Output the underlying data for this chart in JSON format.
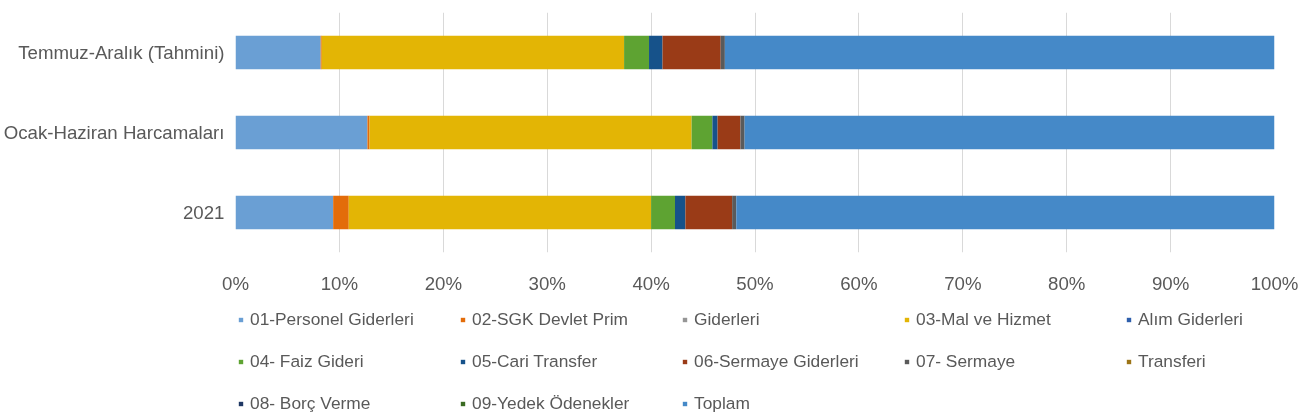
{
  "chart_data": {
    "type": "bar",
    "orientation": "horizontal",
    "stacked": true,
    "categories": [
      "Temmuz-Aralık (Tahmini)",
      "Ocak-Haziran Harcamaları",
      "2021"
    ],
    "series": [
      {
        "name": "01-Personel Giderleri",
        "color": "#6a9fd4",
        "values": [
          8.2,
          12.7,
          9.4
        ]
      },
      {
        "name": "02-SGK Devlet Prim",
        "color": "#e36c0a",
        "values": [
          0.1,
          0.2,
          1.5
        ]
      },
      {
        "name": "Giderleri",
        "color": "#969696",
        "values": [
          0,
          0,
          0
        ]
      },
      {
        "name": "03-Mal ve Hizmet",
        "color": "#e3b505",
        "values": [
          29.1,
          31.0,
          29.1
        ]
      },
      {
        "name": "Alım Giderleri",
        "color": "#2e5fac",
        "values": [
          0,
          0,
          0
        ]
      },
      {
        "name": "04- Faiz Gideri",
        "color": "#5ea332",
        "values": [
          2.4,
          2.0,
          2.3
        ]
      },
      {
        "name": "05-Cari Transfer",
        "color": "#16528a",
        "values": [
          1.3,
          0.5,
          1.0
        ]
      },
      {
        "name": "06-Sermaye Giderleri",
        "color": "#9a3b17",
        "values": [
          5.6,
          2.2,
          4.5
        ]
      },
      {
        "name": "07- Sermaye",
        "color": "#5a5a5a",
        "values": [
          0.4,
          0.4,
          0.4
        ]
      },
      {
        "name": "Transferi",
        "color": "#9c7417",
        "values": [
          0,
          0,
          0
        ]
      },
      {
        "name": "08- Borç Verme",
        "color": "#1f3864",
        "values": [
          0,
          0,
          0
        ]
      },
      {
        "name": "09-Yedek Ödenekler",
        "color": "#3a6b22",
        "values": [
          0,
          0,
          0
        ]
      },
      {
        "name": "Toplam",
        "color": "#4589c8",
        "values": [
          52.9,
          51.0,
          51.8
        ]
      }
    ],
    "xlim": [
      0,
      100
    ],
    "xticks": [
      {
        "value": 0,
        "label": "0%"
      },
      {
        "value": 10,
        "label": "10%"
      },
      {
        "value": 20,
        "label": "20%"
      },
      {
        "value": 30,
        "label": "30%"
      },
      {
        "value": 40,
        "label": "40%"
      },
      {
        "value": 50,
        "label": "50%"
      },
      {
        "value": 60,
        "label": "60%"
      },
      {
        "value": 70,
        "label": "70%"
      },
      {
        "value": 80,
        "label": "80%"
      },
      {
        "value": 90,
        "label": "90%"
      },
      {
        "value": 100,
        "label": "100%"
      }
    ],
    "grid": "x",
    "legend": "bottom"
  }
}
